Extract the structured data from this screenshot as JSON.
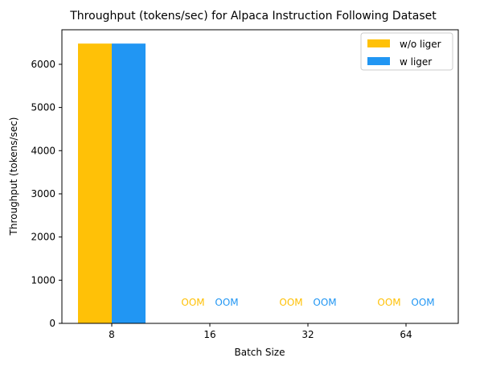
{
  "chart_data": {
    "type": "bar",
    "title": "Throughput (tokens/sec) for Alpaca Instruction Following Dataset",
    "xlabel": "Batch Size",
    "ylabel": "Throughput (tokens/sec)",
    "categories": [
      "8",
      "16",
      "32",
      "64"
    ],
    "ylim": [
      0,
      6800
    ],
    "yticks": [
      0,
      1000,
      2000,
      3000,
      4000,
      5000,
      6000
    ],
    "grid": false,
    "legend_position": "top-right",
    "series": [
      {
        "name": "w/o liger",
        "color": "#FFC107",
        "values": [
          6480,
          null,
          null,
          null
        ],
        "annotations": [
          "",
          "OOM",
          "OOM",
          "OOM"
        ]
      },
      {
        "name": "w liger",
        "color": "#2196F3",
        "values": [
          6480,
          null,
          null,
          null
        ],
        "annotations": [
          "",
          "OOM",
          "OOM",
          "OOM"
        ]
      }
    ]
  }
}
